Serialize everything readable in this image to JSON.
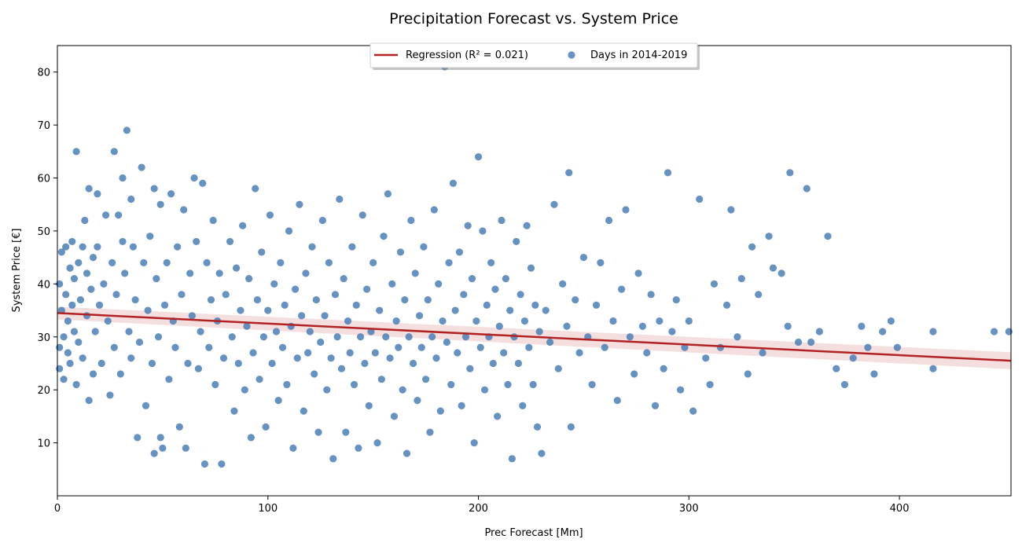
{
  "chart_data": {
    "type": "scatter",
    "title": "Precipitation Forecast vs. System Price",
    "xlabel": "Prec Forecast [Mm]",
    "ylabel": "System Price [€]",
    "xlim": [
      0,
      453
    ],
    "ylim": [
      0,
      85
    ],
    "xticks": [
      0,
      100,
      200,
      300,
      400
    ],
    "yticks": [
      10,
      20,
      30,
      40,
      50,
      60,
      70,
      80
    ],
    "grid": false,
    "legend_position": "top-center",
    "series": [
      {
        "name": "Days in 2014-2019",
        "kind": "scatter",
        "color": "#4a7fb5",
        "points": [
          [
            1,
            28
          ],
          [
            1,
            40
          ],
          [
            1,
            24
          ],
          [
            2,
            35
          ],
          [
            2,
            46
          ],
          [
            3,
            22
          ],
          [
            3,
            30
          ],
          [
            4,
            47
          ],
          [
            4,
            38
          ],
          [
            5,
            27
          ],
          [
            5,
            33
          ],
          [
            6,
            43
          ],
          [
            6,
            25
          ],
          [
            7,
            48
          ],
          [
            7,
            36
          ],
          [
            8,
            31
          ],
          [
            8,
            41
          ],
          [
            9,
            65
          ],
          [
            9,
            21
          ],
          [
            10,
            44
          ],
          [
            10,
            29
          ],
          [
            11,
            37
          ],
          [
            12,
            47
          ],
          [
            12,
            26
          ],
          [
            13,
            52
          ],
          [
            14,
            34
          ],
          [
            14,
            42
          ],
          [
            15,
            18
          ],
          [
            15,
            58
          ],
          [
            16,
            39
          ],
          [
            17,
            45
          ],
          [
            17,
            23
          ],
          [
            18,
            31
          ],
          [
            19,
            57
          ],
          [
            19,
            47
          ],
          [
            20,
            36
          ],
          [
            21,
            25
          ],
          [
            22,
            40
          ],
          [
            23,
            53
          ],
          [
            24,
            33
          ],
          [
            25,
            19
          ],
          [
            26,
            44
          ],
          [
            27,
            65
          ],
          [
            27,
            28
          ],
          [
            28,
            38
          ],
          [
            29,
            53
          ],
          [
            30,
            23
          ],
          [
            31,
            48
          ],
          [
            31,
            60
          ],
          [
            32,
            42
          ],
          [
            33,
            69
          ],
          [
            34,
            31
          ],
          [
            35,
            56
          ],
          [
            35,
            26
          ],
          [
            36,
            47
          ],
          [
            37,
            37
          ],
          [
            38,
            11
          ],
          [
            39,
            29
          ],
          [
            40,
            62
          ],
          [
            41,
            44
          ],
          [
            42,
            17
          ],
          [
            43,
            35
          ],
          [
            44,
            49
          ],
          [
            45,
            25
          ],
          [
            46,
            58
          ],
          [
            46,
            8
          ],
          [
            47,
            41
          ],
          [
            48,
            30
          ],
          [
            49,
            55
          ],
          [
            49,
            11
          ],
          [
            50,
            9
          ],
          [
            51,
            36
          ],
          [
            52,
            44
          ],
          [
            53,
            22
          ],
          [
            54,
            57
          ],
          [
            55,
            33
          ],
          [
            56,
            28
          ],
          [
            57,
            47
          ],
          [
            58,
            13
          ],
          [
            59,
            38
          ],
          [
            60,
            54
          ],
          [
            61,
            9
          ],
          [
            62,
            25
          ],
          [
            63,
            42
          ],
          [
            64,
            34
          ],
          [
            65,
            60
          ],
          [
            66,
            48
          ],
          [
            67,
            24
          ],
          [
            68,
            31
          ],
          [
            69,
            59
          ],
          [
            70,
            6
          ],
          [
            71,
            44
          ],
          [
            72,
            28
          ],
          [
            73,
            37
          ],
          [
            74,
            52
          ],
          [
            75,
            21
          ],
          [
            76,
            33
          ],
          [
            77,
            42
          ],
          [
            78,
            6
          ],
          [
            79,
            26
          ],
          [
            80,
            38
          ],
          [
            82,
            48
          ],
          [
            83,
            30
          ],
          [
            84,
            16
          ],
          [
            85,
            43
          ],
          [
            86,
            25
          ],
          [
            87,
            35
          ],
          [
            88,
            51
          ],
          [
            89,
            20
          ],
          [
            90,
            32
          ],
          [
            91,
            41
          ],
          [
            92,
            11
          ],
          [
            93,
            27
          ],
          [
            94,
            58
          ],
          [
            95,
            37
          ],
          [
            96,
            22
          ],
          [
            97,
            46
          ],
          [
            98,
            30
          ],
          [
            99,
            13
          ],
          [
            100,
            35
          ],
          [
            101,
            53
          ],
          [
            102,
            25
          ],
          [
            103,
            40
          ],
          [
            104,
            31
          ],
          [
            105,
            18
          ],
          [
            106,
            44
          ],
          [
            107,
            28
          ],
          [
            108,
            36
          ],
          [
            109,
            21
          ],
          [
            110,
            50
          ],
          [
            111,
            32
          ],
          [
            112,
            9
          ],
          [
            113,
            39
          ],
          [
            114,
            26
          ],
          [
            115,
            55
          ],
          [
            116,
            34
          ],
          [
            117,
            16
          ],
          [
            118,
            42
          ],
          [
            119,
            27
          ],
          [
            120,
            31
          ],
          [
            121,
            47
          ],
          [
            122,
            23
          ],
          [
            123,
            37
          ],
          [
            124,
            12
          ],
          [
            125,
            29
          ],
          [
            126,
            52
          ],
          [
            127,
            34
          ],
          [
            128,
            20
          ],
          [
            129,
            44
          ],
          [
            130,
            26
          ],
          [
            131,
            7
          ],
          [
            132,
            38
          ],
          [
            133,
            30
          ],
          [
            134,
            56
          ],
          [
            135,
            24
          ],
          [
            136,
            41
          ],
          [
            137,
            12
          ],
          [
            138,
            33
          ],
          [
            139,
            27
          ],
          [
            140,
            47
          ],
          [
            141,
            21
          ],
          [
            142,
            36
          ],
          [
            143,
            9
          ],
          [
            144,
            30
          ],
          [
            145,
            53
          ],
          [
            146,
            25
          ],
          [
            147,
            39
          ],
          [
            148,
            17
          ],
          [
            149,
            31
          ],
          [
            150,
            44
          ],
          [
            151,
            27
          ],
          [
            152,
            10
          ],
          [
            153,
            35
          ],
          [
            154,
            22
          ],
          [
            155,
            49
          ],
          [
            156,
            30
          ],
          [
            157,
            57
          ],
          [
            158,
            26
          ],
          [
            159,
            40
          ],
          [
            160,
            15
          ],
          [
            161,
            33
          ],
          [
            162,
            28
          ],
          [
            163,
            46
          ],
          [
            164,
            20
          ],
          [
            165,
            37
          ],
          [
            166,
            8
          ],
          [
            167,
            30
          ],
          [
            168,
            52
          ],
          [
            169,
            25
          ],
          [
            170,
            42
          ],
          [
            171,
            18
          ],
          [
            172,
            34
          ],
          [
            173,
            28
          ],
          [
            174,
            47
          ],
          [
            175,
            22
          ],
          [
            176,
            37
          ],
          [
            177,
            12
          ],
          [
            178,
            30
          ],
          [
            179,
            54
          ],
          [
            180,
            26
          ],
          [
            181,
            40
          ],
          [
            182,
            16
          ],
          [
            183,
            33
          ],
          [
            184,
            81
          ],
          [
            185,
            29
          ],
          [
            186,
            44
          ],
          [
            187,
            21
          ],
          [
            188,
            59
          ],
          [
            189,
            35
          ],
          [
            190,
            27
          ],
          [
            191,
            46
          ],
          [
            192,
            17
          ],
          [
            193,
            38
          ],
          [
            194,
            30
          ],
          [
            195,
            51
          ],
          [
            196,
            24
          ],
          [
            197,
            41
          ],
          [
            198,
            10
          ],
          [
            199,
            33
          ],
          [
            200,
            64
          ],
          [
            201,
            28
          ],
          [
            202,
            50
          ],
          [
            203,
            20
          ],
          [
            204,
            36
          ],
          [
            205,
            30
          ],
          [
            206,
            44
          ],
          [
            207,
            25
          ],
          [
            208,
            39
          ],
          [
            209,
            15
          ],
          [
            210,
            32
          ],
          [
            211,
            52
          ],
          [
            212,
            27
          ],
          [
            213,
            41
          ],
          [
            214,
            21
          ],
          [
            215,
            35
          ],
          [
            216,
            7
          ],
          [
            217,
            30
          ],
          [
            218,
            48
          ],
          [
            219,
            25
          ],
          [
            220,
            38
          ],
          [
            221,
            17
          ],
          [
            222,
            33
          ],
          [
            223,
            51
          ],
          [
            224,
            28
          ],
          [
            225,
            43
          ],
          [
            226,
            21
          ],
          [
            227,
            36
          ],
          [
            228,
            13
          ],
          [
            229,
            31
          ],
          [
            230,
            8
          ],
          [
            232,
            35
          ],
          [
            234,
            29
          ],
          [
            236,
            55
          ],
          [
            238,
            24
          ],
          [
            240,
            40
          ],
          [
            242,
            32
          ],
          [
            243,
            61
          ],
          [
            244,
            13
          ],
          [
            246,
            37
          ],
          [
            248,
            27
          ],
          [
            250,
            45
          ],
          [
            252,
            30
          ],
          [
            254,
            21
          ],
          [
            256,
            36
          ],
          [
            258,
            44
          ],
          [
            260,
            28
          ],
          [
            262,
            52
          ],
          [
            264,
            33
          ],
          [
            266,
            18
          ],
          [
            268,
            39
          ],
          [
            270,
            54
          ],
          [
            272,
            30
          ],
          [
            274,
            23
          ],
          [
            276,
            42
          ],
          [
            278,
            32
          ],
          [
            280,
            27
          ],
          [
            282,
            38
          ],
          [
            284,
            17
          ],
          [
            286,
            33
          ],
          [
            288,
            24
          ],
          [
            290,
            61
          ],
          [
            292,
            31
          ],
          [
            294,
            37
          ],
          [
            296,
            20
          ],
          [
            298,
            28
          ],
          [
            300,
            33
          ],
          [
            302,
            16
          ],
          [
            305,
            56
          ],
          [
            308,
            26
          ],
          [
            310,
            21
          ],
          [
            312,
            40
          ],
          [
            315,
            28
          ],
          [
            318,
            36
          ],
          [
            320,
            54
          ],
          [
            323,
            30
          ],
          [
            325,
            41
          ],
          [
            328,
            23
          ],
          [
            330,
            47
          ],
          [
            333,
            38
          ],
          [
            335,
            27
          ],
          [
            338,
            49
          ],
          [
            340,
            43
          ],
          [
            344,
            42
          ],
          [
            347,
            32
          ],
          [
            348,
            61
          ],
          [
            352,
            29
          ],
          [
            356,
            58
          ],
          [
            358,
            29
          ],
          [
            362,
            31
          ],
          [
            366,
            49
          ],
          [
            370,
            24
          ],
          [
            374,
            21
          ],
          [
            378,
            26
          ],
          [
            382,
            32
          ],
          [
            385,
            28
          ],
          [
            388,
            23
          ],
          [
            392,
            31
          ],
          [
            396,
            33
          ],
          [
            399,
            28
          ],
          [
            416,
            31
          ],
          [
            416,
            24
          ],
          [
            445,
            31
          ],
          [
            452,
            31
          ]
        ]
      },
      {
        "name": "Regression (R² = 0.021)",
        "kind": "line",
        "color": "#b22222",
        "x": [
          0,
          453
        ],
        "y": [
          34.5,
          25.5
        ],
        "ci_halfwidth_at_ends": [
          1.2,
          1.6
        ]
      }
    ]
  }
}
